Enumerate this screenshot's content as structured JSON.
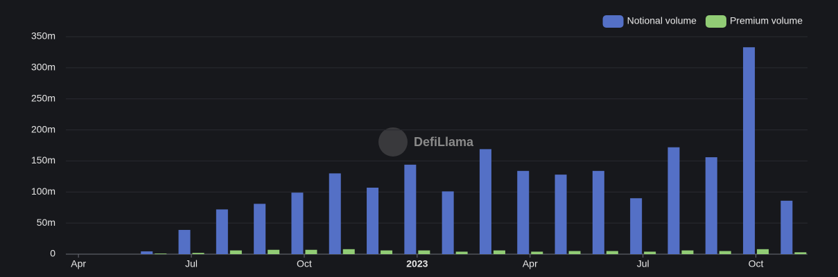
{
  "chart_data": {
    "type": "bar",
    "watermark": "DefiLlama",
    "categories": [
      "Apr",
      null,
      null,
      "Jul",
      null,
      null,
      "Oct",
      null,
      null,
      "2023",
      null,
      null,
      "Apr",
      null,
      null,
      "Jul",
      null,
      null,
      "Oct",
      null
    ],
    "series": [
      {
        "name": "Notional volume",
        "color": "#5470c6",
        "values": [
          0,
          0,
          4.5,
          39,
          72,
          81,
          99,
          130,
          107,
          144,
          101,
          169,
          134,
          128,
          134,
          90,
          172,
          156,
          333,
          86
        ]
      },
      {
        "name": "Premium volume",
        "color": "#91cc75",
        "values": [
          0,
          0,
          1,
          2,
          6,
          7,
          7,
          8,
          6,
          6,
          4,
          6,
          4,
          5,
          5,
          4,
          6,
          5,
          8,
          3
        ]
      }
    ],
    "ylim": [
      0,
      350
    ],
    "yticks": [
      0,
      {
        "value": 50,
        "label": "50m"
      },
      {
        "value": 100,
        "label": "100m"
      },
      {
        "value": 150,
        "label": "150m"
      },
      {
        "value": 200,
        "label": "200m"
      },
      {
        "value": 250,
        "label": "250m"
      },
      {
        "value": 300,
        "label": "300m"
      },
      {
        "value": 350,
        "label": "350m"
      }
    ],
    "grid": true,
    "legend": "top-right"
  }
}
